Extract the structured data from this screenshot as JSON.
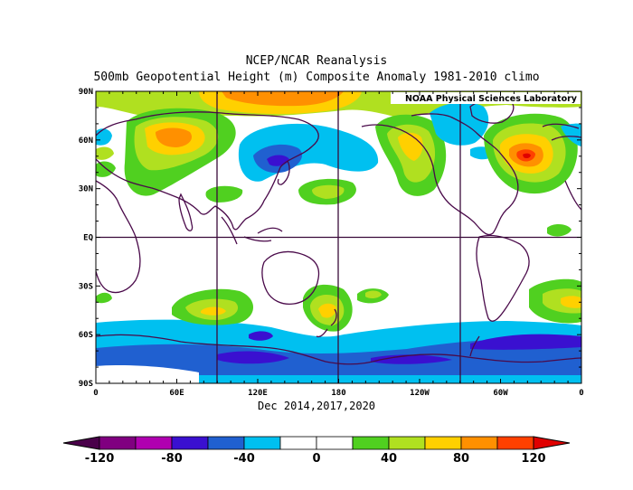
{
  "title": "NCEP/NCAR Reanalysis",
  "subtitle": "500mb Geopotential Height (m) Composite Anomaly 1981-2010 climo",
  "credit": "NOAA Physical Sciences Laboratory",
  "period_label": "Dec 2014,2017,2020",
  "axes": {
    "lat_ticks": [
      "90N",
      "60N",
      "30N",
      "EQ",
      "30S",
      "60S",
      "90S"
    ],
    "lon_ticks": [
      "0",
      "60E",
      "120E",
      "180",
      "120W",
      "60W",
      "0"
    ]
  },
  "colorbar": {
    "labels": [
      "-120",
      "-80",
      "-40",
      "0",
      "40",
      "80",
      "120"
    ],
    "colors": [
      "#800080",
      "#b000b0",
      "#3a10d0",
      "#2060d0",
      "#00c0f0",
      "#ffffff",
      "#ffffff",
      "#50d020",
      "#b0e020",
      "#ffd000",
      "#ff9000",
      "#ff4000"
    ],
    "low_arrow_color": "#4a004a",
    "high_arrow_color": "#e00000"
  }
}
